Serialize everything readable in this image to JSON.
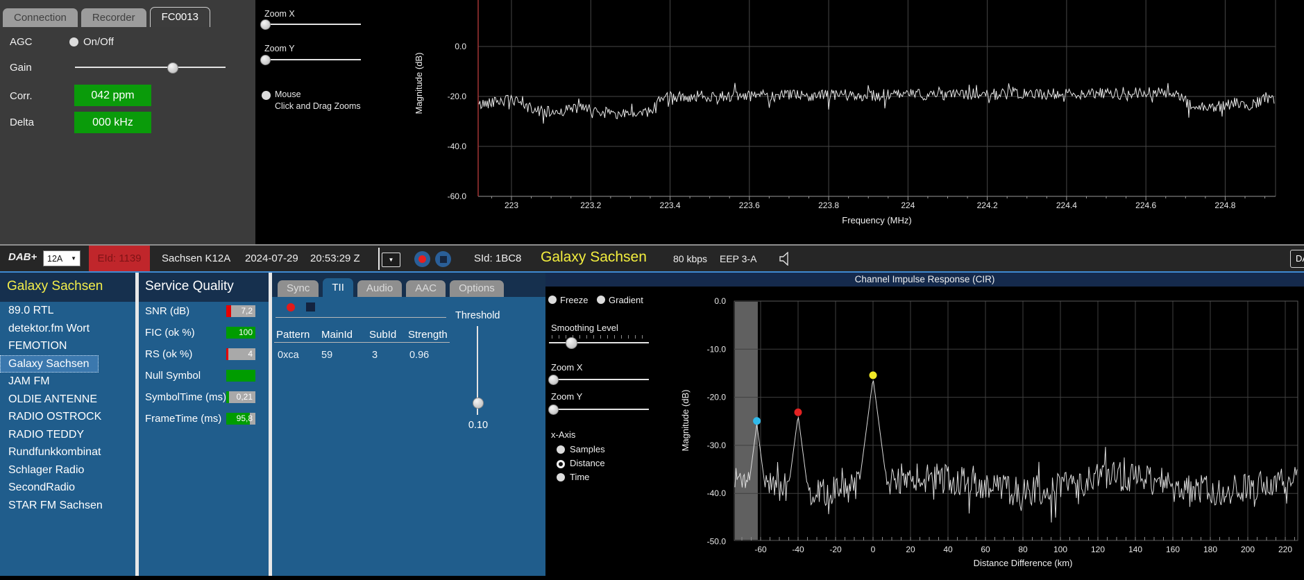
{
  "tuner": {
    "tabs": [
      {
        "label": "Connection",
        "active": false
      },
      {
        "label": "Recorder",
        "active": false
      },
      {
        "label": "FC0013",
        "active": true
      }
    ],
    "agc_label": "AGC",
    "agc_option": "On/Off",
    "gain_label": "Gain",
    "corr_label": "Corr.",
    "corr_value": "042 ppm",
    "delta_label": "Delta",
    "delta_value": "000 kHz"
  },
  "spectrum_controls": {
    "zoom_x_label": "Zoom X",
    "zoom_y_label": "Zoom Y",
    "mouse_label": "Mouse",
    "mouse_sub": "Click and Drag Zooms"
  },
  "dab_bar": {
    "mode": "DAB+",
    "channel": "12A",
    "eid": "EId: 1139",
    "ensemble": "Sachsen K12A",
    "date": "2024-07-29",
    "time": "20:53:29 Z",
    "sid": "SId: 1BC8",
    "service": "Galaxy Sachsen",
    "bitrate": "80 kbps",
    "protection": "EEP 3-A",
    "badge": "DAB"
  },
  "stations": {
    "header": "Galaxy Sachsen",
    "selected": "Galaxy Sachsen",
    "items": [
      "89.0 RTL",
      "detektor.fm Wort",
      "FEMOTION",
      "Galaxy Sachsen",
      "JAM FM",
      "OLDIE ANTENNE",
      "RADIO OSTROCK",
      "RADIO TEDDY",
      "Rundfunkkombinat",
      "Schlager Radio",
      "SecondRadio",
      "STAR FM Sachsen"
    ]
  },
  "service_quality": {
    "header": "Service Quality",
    "rows": [
      {
        "label": "SNR (dB)",
        "value": "7,2",
        "bar_color": "red",
        "bar_pct": 17
      },
      {
        "label": "FIC (ok %)",
        "value": "100",
        "bar_color": "green",
        "bar_pct": 100
      },
      {
        "label": "RS (ok %)",
        "value": "4",
        "bar_color": "red",
        "bar_pct": 7
      },
      {
        "label": "Null Symbol",
        "value": "",
        "bar_color": "green",
        "bar_pct": 100
      },
      {
        "label": "SymbolTime (ms)",
        "value": "0,21",
        "bar_color": "green",
        "bar_pct": 10
      },
      {
        "label": "FrameTime (ms)",
        "value": "95,8",
        "bar_color": "green",
        "bar_pct": 81
      }
    ]
  },
  "tii": {
    "tabs": [
      "Sync",
      "TII",
      "Audio",
      "AAC",
      "Options"
    ],
    "active_tab": "TII",
    "table": {
      "headers": [
        "Pattern",
        "MainId",
        "SubId",
        "Strength"
      ],
      "rows": [
        [
          "0xca",
          "59",
          "3",
          "0.96"
        ]
      ]
    },
    "threshold_label": "Threshold",
    "threshold_value": "0.10"
  },
  "cir": {
    "title": "Channel Impulse Response (CIR)",
    "freeze_label": "Freeze",
    "gradient_label": "Gradient",
    "smoothing_label": "Smoothing Level",
    "zoom_x_label": "Zoom X",
    "zoom_y_label": "Zoom Y",
    "xaxis_label": "x-Axis",
    "xaxis_options": [
      {
        "label": "Samples",
        "selected": false
      },
      {
        "label": "Distance",
        "selected": true
      },
      {
        "label": "Time",
        "selected": false
      }
    ]
  },
  "colors": {
    "panel_blue": "#205d8c",
    "header_navy": "#16304e",
    "accent_yellow": "#f2ee4e",
    "value_green": "#0a9b0a",
    "eid_red": "#c0262b",
    "record_red": "#e81f1f",
    "top_border_blue": "#3f8ad2"
  },
  "chart_data": [
    {
      "id": "spectrum",
      "type": "line",
      "title": "",
      "xlabel": "Frequency (MHz)",
      "ylabel": "Magnitude (dB)",
      "xlim": [
        222.916,
        224.927
      ],
      "ylim": [
        -60,
        18
      ],
      "xticks": [
        223,
        223.2,
        223.4,
        223.6,
        223.8,
        224,
        224.2,
        224.4,
        224.6,
        224.8
      ],
      "yticks": [
        0,
        -20,
        -40,
        -60
      ],
      "grid": true,
      "noise_db": 2.3,
      "envelope": [
        [
          222.91,
          -24
        ],
        [
          222.95,
          -22
        ],
        [
          223.0,
          -21.5
        ],
        [
          223.05,
          -25
        ],
        [
          223.1,
          -26.5
        ],
        [
          223.17,
          -24.5
        ],
        [
          223.22,
          -26
        ],
        [
          223.3,
          -27.5
        ],
        [
          223.35,
          -26
        ],
        [
          223.38,
          -20.5
        ],
        [
          223.5,
          -19.8
        ],
        [
          223.8,
          -19.5
        ],
        [
          224.1,
          -19.2
        ],
        [
          224.4,
          -19
        ],
        [
          224.55,
          -18.8
        ],
        [
          224.68,
          -18.5
        ],
        [
          224.71,
          -23.5
        ],
        [
          224.78,
          -24
        ],
        [
          224.83,
          -22.5
        ],
        [
          224.87,
          -23.5
        ],
        [
          224.9,
          -20.5
        ],
        [
          224.93,
          -22
        ]
      ]
    },
    {
      "id": "cir",
      "type": "line",
      "title": "Channel Impulse Response (CIR)",
      "xlabel": "Distance Difference (km)",
      "ylabel": "Magnitude (dB)",
      "xlim": [
        -74,
        226.7
      ],
      "ylim": [
        -50,
        0
      ],
      "xticks": [
        -60,
        -40,
        -20,
        0,
        20,
        40,
        60,
        80,
        100,
        120,
        140,
        160,
        180,
        200,
        220
      ],
      "yticks": [
        0,
        -10,
        -20,
        -30,
        -40,
        -50
      ],
      "grid": true,
      "noise_floor": -38,
      "noise_db": 3.2,
      "guard_band_end_km": -61.5,
      "peaks": [
        {
          "x": -62,
          "y": -25.5,
          "color": "#2fb9ea",
          "name": "echo-1"
        },
        {
          "x": -40,
          "y": -23.7,
          "color": "#e32222",
          "name": "echo-2"
        },
        {
          "x": 0,
          "y": -16.0,
          "color": "#f2e926",
          "name": "main-peak"
        }
      ]
    }
  ]
}
